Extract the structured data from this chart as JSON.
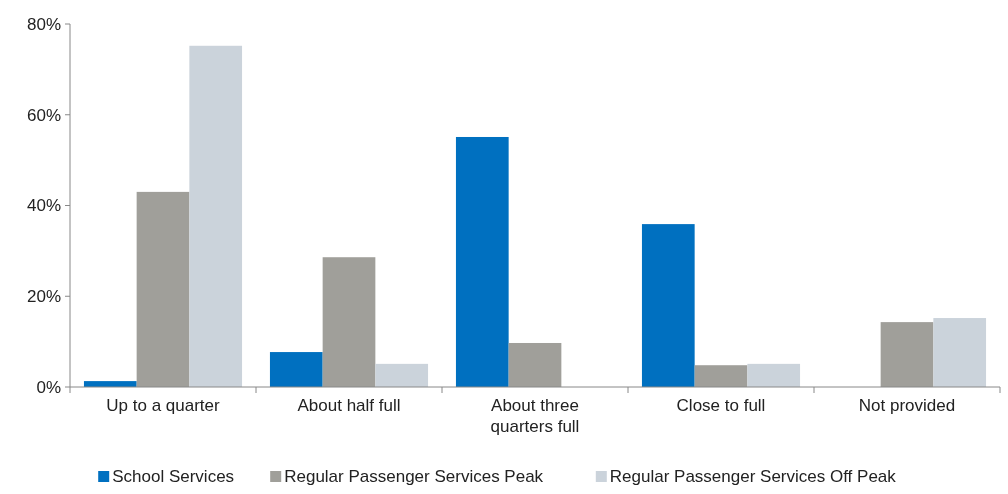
{
  "chart_data": {
    "type": "bar",
    "categories": [
      "Up to a quarter",
      "About half full",
      "About three quarters full",
      "Close to full",
      "Not provided"
    ],
    "series": [
      {
        "name": "School Services",
        "color": "#0070c0",
        "values": [
          1.3,
          7.7,
          55.1,
          35.9,
          0
        ]
      },
      {
        "name": "Regular Passenger Services Peak",
        "color": "#a09f9a",
        "values": [
          43,
          28.6,
          9.7,
          4.8,
          14.3
        ]
      },
      {
        "name": "Regular Passenger Services Off Peak",
        "color": "#cbd3db",
        "values": [
          75.2,
          5.1,
          0,
          5.1,
          15.2
        ]
      }
    ],
    "ylim": [
      0,
      80
    ],
    "yticks": [
      {
        "value": 0,
        "label": "0%"
      },
      {
        "value": 20,
        "label": "20%"
      },
      {
        "value": 40,
        "label": "40%"
      },
      {
        "value": 60,
        "label": "60%"
      },
      {
        "value": 80,
        "label": "80%"
      }
    ],
    "grid": false,
    "legend": "bottom"
  }
}
